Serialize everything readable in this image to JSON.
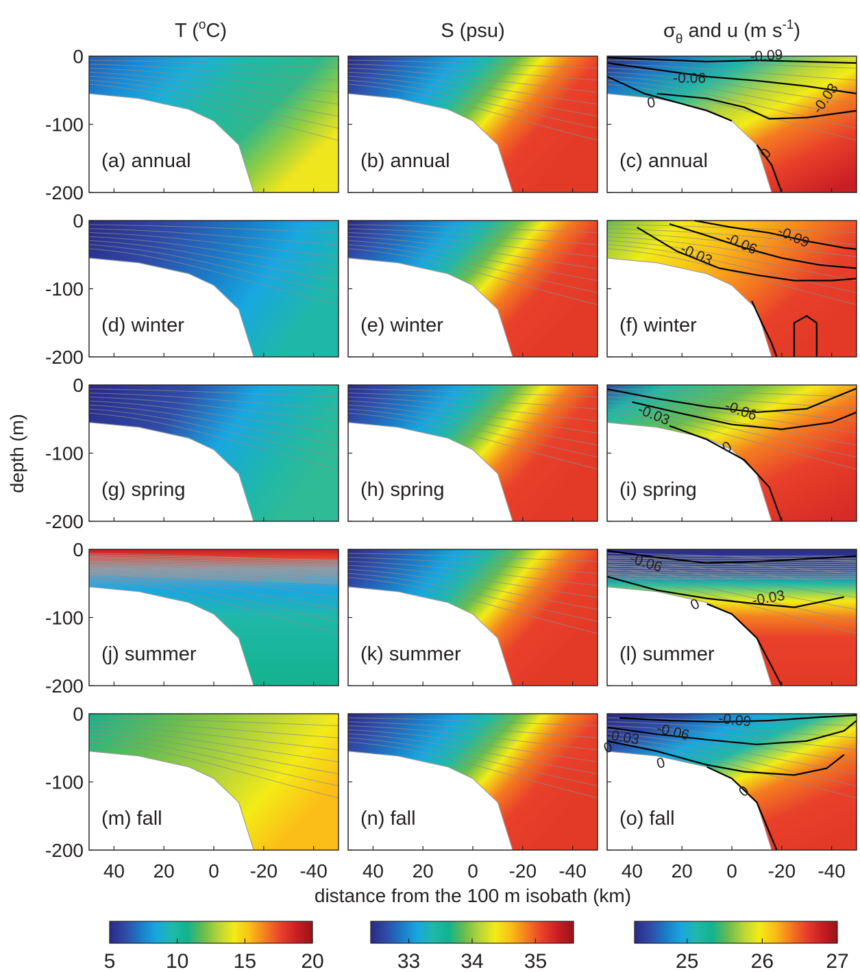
{
  "figure": {
    "column_titles": [
      {
        "main": "T (",
        "sup": "o",
        "tail": "C)"
      },
      {
        "main": "S (psu)"
      },
      {
        "main": "σ",
        "sub": "θ",
        "tail": " and u (m s",
        "sup": "-1",
        "end": ")"
      }
    ],
    "ylabel": "depth (m)",
    "xlabel": "distance from the 100 m isobath (km)"
  },
  "chart_data": {
    "type": "heatmap",
    "panel_rows": [
      "annual",
      "winter",
      "spring",
      "summer",
      "fall"
    ],
    "panel_letters": [
      [
        "a",
        "b",
        "c"
      ],
      [
        "d",
        "e",
        "f"
      ],
      [
        "g",
        "h",
        "i"
      ],
      [
        "j",
        "k",
        "l"
      ],
      [
        "m",
        "n",
        "o"
      ]
    ],
    "x": {
      "ticks": [
        40,
        20,
        0,
        -20,
        -40
      ],
      "tick_labels": [
        "40",
        "20",
        "0",
        "-20",
        "-40"
      ],
      "range": [
        50,
        -50
      ],
      "unit": "km"
    },
    "y": {
      "ticks": [
        0,
        -100,
        -200
      ],
      "tick_labels": [
        "0",
        "-100",
        "-200"
      ],
      "range": [
        0,
        -200
      ],
      "unit": "m"
    },
    "topography": [
      {
        "x": 50,
        "depth": -55
      },
      {
        "x": 30,
        "depth": -62
      },
      {
        "x": 10,
        "depth": -78
      },
      {
        "x": 0,
        "depth": -95
      },
      {
        "x": -10,
        "depth": -130
      },
      {
        "x": -16,
        "depth": -200
      }
    ],
    "colorbars": [
      {
        "variable": "T",
        "min": 5,
        "max": 20,
        "ticks": [
          5,
          10,
          15,
          20
        ],
        "tick_labels": [
          "5",
          "10",
          "15",
          "20"
        ]
      },
      {
        "variable": "S",
        "min": 32.4,
        "max": 35.6,
        "ticks": [
          33,
          34,
          35
        ],
        "tick_labels": [
          "33",
          "34",
          "35"
        ]
      },
      {
        "variable": "sigma_theta",
        "min": 24.3,
        "max": 27.0,
        "ticks": [
          25,
          26,
          27
        ],
        "tick_labels": [
          "25",
          "26",
          "27"
        ]
      }
    ],
    "u_contour_labels": [
      [
        {
          "text": "-0.09",
          "x": -14,
          "depth": -6,
          "rot": -4
        },
        {
          "text": "-0.06",
          "x": 17,
          "depth": -39,
          "rot": 0
        },
        {
          "text": "0",
          "x": 32,
          "depth": -75,
          "rot": -10
        },
        {
          "text": "-0.03",
          "x": -39,
          "depth": -66,
          "rot": -55
        },
        {
          "text": "0",
          "x": -15,
          "depth": -147,
          "rot": -50
        }
      ],
      [
        {
          "text": "-0.09",
          "x": -24,
          "depth": -30,
          "rot": 24
        },
        {
          "text": "-0.06",
          "x": -3,
          "depth": -40,
          "rot": 24
        },
        {
          "text": "-0.03",
          "x": 15,
          "depth": -56,
          "rot": 24
        }
      ],
      [
        {
          "text": "-0.06",
          "x": -3,
          "depth": -44,
          "rot": 20
        },
        {
          "text": "-0.03",
          "x": 32,
          "depth": -50,
          "rot": 22
        },
        {
          "text": "0",
          "x": 1,
          "depth": -97,
          "rot": -30
        }
      ],
      [
        {
          "text": "-0.06",
          "x": 35,
          "depth": -26,
          "rot": 18
        },
        {
          "text": "-0.03",
          "x": -15,
          "depth": -78,
          "rot": -10
        },
        {
          "text": "0",
          "x": 14,
          "depth": -87,
          "rot": -25
        }
      ],
      [
        {
          "text": "-0.09",
          "x": -1,
          "depth": -16,
          "rot": 6
        },
        {
          "text": "-0.06",
          "x": 24,
          "depth": -33,
          "rot": 14
        },
        {
          "text": "-0.03",
          "x": 44,
          "depth": -41,
          "rot": 10
        },
        {
          "text": "0",
          "x": 49,
          "depth": -56,
          "rot": -20
        },
        {
          "text": "0",
          "x": 28,
          "depth": -79,
          "rot": -15
        },
        {
          "text": "0",
          "x": -6,
          "depth": -119,
          "rot": -40
        }
      ]
    ],
    "u_contour_paths": [
      [
        [
          [
            50,
            -2
          ],
          [
            30,
            -5
          ],
          [
            10,
            -8
          ],
          [
            -10,
            -6
          ],
          [
            -30,
            -8
          ],
          [
            -50,
            -10
          ]
        ],
        [
          [
            50,
            -10
          ],
          [
            30,
            -20
          ],
          [
            10,
            -30
          ],
          [
            -10,
            -36
          ],
          [
            -30,
            -44
          ],
          [
            -50,
            -55
          ]
        ],
        [
          [
            30,
            -55
          ],
          [
            10,
            -62
          ],
          [
            -5,
            -75
          ],
          [
            -15,
            -92
          ],
          [
            -30,
            -90
          ],
          [
            -50,
            -80
          ]
        ],
        [
          [
            50,
            -30
          ],
          [
            35,
            -55
          ],
          [
            20,
            -70
          ],
          [
            10,
            -80
          ],
          [
            0,
            -95
          ]
        ],
        [
          [
            -10,
            -130
          ],
          [
            -16,
            -160
          ],
          [
            -20,
            -200
          ]
        ]
      ],
      [
        [
          [
            15,
            0
          ],
          [
            0,
            -10
          ],
          [
            -15,
            -18
          ],
          [
            -30,
            -30
          ],
          [
            -45,
            -40
          ],
          [
            -50,
            -42
          ]
        ],
        [
          [
            25,
            -5
          ],
          [
            10,
            -22
          ],
          [
            -5,
            -40
          ],
          [
            -20,
            -55
          ],
          [
            -35,
            -65
          ],
          [
            -50,
            -70
          ]
        ],
        [
          [
            38,
            -10
          ],
          [
            22,
            -45
          ],
          [
            5,
            -70
          ],
          [
            -10,
            -80
          ],
          [
            -25,
            -88
          ],
          [
            -40,
            -88
          ],
          [
            -50,
            -85
          ]
        ],
        [
          [
            -8,
            -118
          ],
          [
            -12,
            -150
          ],
          [
            -16,
            -180
          ],
          [
            -18,
            -200
          ]
        ],
        [
          [
            -25,
            -200
          ],
          [
            -25,
            -150
          ],
          [
            -30,
            -140
          ],
          [
            -34,
            -150
          ],
          [
            -34,
            -200
          ]
        ]
      ],
      [
        [
          [
            50,
            -6
          ],
          [
            30,
            -20
          ],
          [
            10,
            -32
          ],
          [
            -10,
            -40
          ],
          [
            -30,
            -35
          ],
          [
            -50,
            -5
          ]
        ],
        [
          [
            40,
            -25
          ],
          [
            20,
            -42
          ],
          [
            0,
            -58
          ],
          [
            -20,
            -65
          ],
          [
            -40,
            -55
          ],
          [
            -50,
            -40
          ]
        ],
        [
          [
            25,
            -60
          ],
          [
            10,
            -80
          ],
          [
            -5,
            -110
          ],
          [
            -15,
            -150
          ],
          [
            -20,
            -200
          ]
        ]
      ],
      [
        [
          [
            50,
            -2
          ],
          [
            30,
            -12
          ],
          [
            10,
            -20
          ],
          [
            -10,
            -18
          ],
          [
            -30,
            -14
          ],
          [
            -50,
            -10
          ]
        ],
        [
          [
            50,
            -40
          ],
          [
            30,
            -60
          ],
          [
            10,
            -72
          ],
          [
            -10,
            -80
          ],
          [
            -25,
            -85
          ],
          [
            -45,
            -70
          ]
        ],
        [
          [
            10,
            -80
          ],
          [
            0,
            -95
          ],
          [
            -10,
            -130
          ],
          [
            -20,
            -200
          ]
        ]
      ],
      [
        [
          [
            45,
            -6
          ],
          [
            25,
            -10
          ],
          [
            5,
            -12
          ],
          [
            -15,
            -10
          ],
          [
            -35,
            -5
          ],
          [
            -50,
            -2
          ]
        ],
        [
          [
            50,
            -20
          ],
          [
            30,
            -30
          ],
          [
            10,
            -38
          ],
          [
            -10,
            -45
          ],
          [
            -30,
            -40
          ],
          [
            -45,
            -25
          ],
          [
            -50,
            -10
          ]
        ],
        [
          [
            50,
            -40
          ],
          [
            30,
            -55
          ],
          [
            10,
            -75
          ],
          [
            -5,
            -85
          ],
          [
            -25,
            -90
          ],
          [
            -38,
            -80
          ],
          [
            -45,
            -60
          ]
        ],
        [
          [
            10,
            -78
          ],
          [
            0,
            -95
          ],
          [
            -10,
            -130
          ],
          [
            -18,
            -200
          ]
        ]
      ]
    ]
  }
}
